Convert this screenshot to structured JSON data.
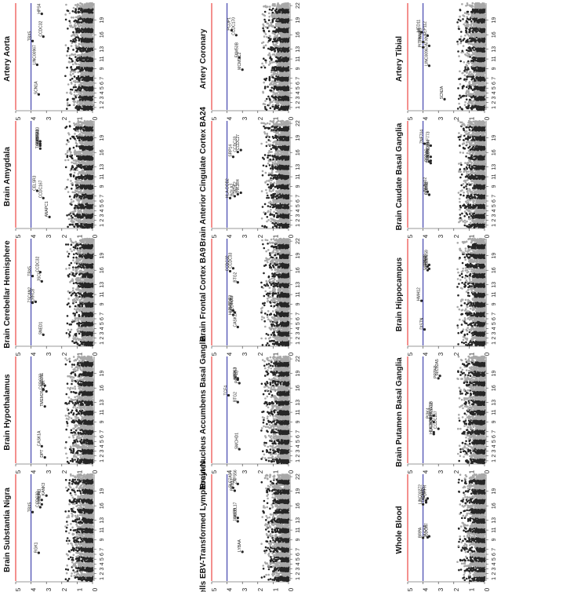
{
  "chart_data": [
    {
      "type": "scatter",
      "title": "Artery Aorta",
      "ylim": [
        0,
        5
      ],
      "thresholds": [
        4,
        5
      ],
      "genes": [
        [
          "SCN1A",
          3.2,
          3.5
        ],
        [
          "LINC00967",
          9.3,
          3.6
        ],
        [
          "TBX5",
          14.2,
          3.9
        ],
        [
          "CCDC32",
          15.1,
          3.2
        ],
        [
          "HPS4",
          19.8,
          3.3
        ]
      ]
    },
    {
      "type": "scatter",
      "title": "Artery Coronary",
      "ylim": [
        0,
        5
      ],
      "thresholds": [
        4,
        5
      ],
      "genes": [
        [
          "MCMDC2",
          8.3,
          3.0
        ],
        [
          "FAM53B",
          10.8,
          3.2
        ],
        [
          "CCDC170",
          15.4,
          3.4
        ],
        [
          "PCDP1",
          16.4,
          3.7
        ]
      ]
    },
    {
      "type": "scatter",
      "title": "Artery Tibial",
      "ylim": [
        0,
        5
      ],
      "thresholds": [
        4,
        5
      ],
      "genes": [
        [
          "SCN2A",
          2.2,
          2.6
        ],
        [
          "LINC00967",
          9.1,
          3.6
        ],
        [
          "ATXN2",
          13.2,
          3.6
        ],
        [
          "PITPNM2",
          12.9,
          4.0
        ],
        [
          "TRIM65",
          14.0,
          4.0
        ],
        [
          "MED11",
          16.0,
          4.1
        ],
        [
          "CEP112",
          15.3,
          3.7
        ]
      ]
    },
    {
      "type": "scatter",
      "title": "Brain Amygdala",
      "ylim": [
        0,
        5
      ],
      "thresholds": [
        4,
        5
      ],
      "genes": [
        [
          "ANAPC1",
          2.2,
          2.8
        ],
        [
          "CCDC167",
          6.1,
          3.2
        ],
        [
          "CELSR3",
          7.6,
          3.6
        ],
        [
          "TAOK2",
          16.3,
          3.4
        ],
        [
          "SULT1A1",
          16.9,
          3.4
        ],
        [
          "NPIPB1",
          17.3,
          3.4
        ],
        [
          "ZNF770",
          17.8,
          3.4
        ]
      ]
    },
    {
      "type": "scatter",
      "title": "Brain Anterior Cingulate Cortex BA24",
      "ylim": [
        0,
        5
      ],
      "thresholds": [
        4,
        5
      ],
      "genes": [
        [
          "HLA-DQB2",
          6.1,
          3.8
        ],
        [
          "BOLA2",
          6.5,
          3.5
        ],
        [
          "TAOK2",
          6.9,
          3.3
        ],
        [
          "PIK3R4",
          7.2,
          3.1
        ],
        [
          "SRP14",
          14.6,
          3.6
        ],
        [
          "CCDC27",
          16.0,
          3.1
        ],
        [
          "CCDC33",
          15.6,
          3.3
        ]
      ]
    },
    {
      "type": "scatter",
      "title": "Brain Caudate Basal Ganglia",
      "ylim": [
        0,
        5
      ],
      "thresholds": [
        4,
        5
      ],
      "genes": [
        [
          "CLDN2",
          6.8,
          3.6
        ],
        [
          "PHKG2",
          6.8,
          3.6
        ],
        [
          "KCNJ12",
          7.4,
          3.7
        ],
        [
          "PPP4C",
          13.6,
          3.6
        ],
        [
          "TRAPPC6B",
          13.3,
          3.5
        ],
        [
          "TAOK2",
          13.8,
          3.5
        ],
        [
          "KCTD13",
          14.6,
          3.5
        ],
        [
          "ZNF704",
          17.3,
          3.9
        ],
        [
          "ZNF773",
          16.9,
          3.5
        ]
      ]
    },
    {
      "type": "scatter",
      "title": "Brain Cerebellar Hemisphere",
      "ylim": [
        0,
        5
      ],
      "thresholds": [
        4,
        5
      ],
      "genes": [
        [
          "SNED1",
          2.2,
          3.2
        ],
        [
          "ZSCAN2",
          8.8,
          3.9
        ],
        [
          "LRRC8",
          9.0,
          3.7
        ],
        [
          "JSCU",
          13.2,
          3.3
        ],
        [
          "TBX5",
          14.3,
          3.9
        ],
        [
          "CCDC32",
          15.1,
          3.4
        ]
      ]
    },
    {
      "type": "scatter",
      "title": "Brain Frontal Cortex BA9",
      "ylim": [
        0,
        5
      ],
      "thresholds": [
        4,
        5
      ],
      "genes": [
        [
          "CASK1A",
          3.8,
          3.3
        ],
        [
          "HLA-DQB",
          6.3,
          3.6
        ],
        [
          "SLC44A4",
          6.8,
          3.5
        ],
        [
          "EMEI-F3",
          7.2,
          3.6
        ],
        [
          "BTG2",
          13.0,
          3.3
        ],
        [
          "CCDC32",
          15.3,
          3.8
        ],
        [
          "CCDC33",
          15.9,
          3.6
        ]
      ]
    },
    {
      "type": "scatter",
      "title": "Brain Hippocampus",
      "ylim": [
        0,
        5
      ],
      "thresholds": [
        4,
        5
      ],
      "genes": [
        [
          "DISTN",
          3.3,
          3.9
        ],
        [
          "HMH12",
          9.2,
          4.1
        ],
        [
          "CCDC22",
          15.5,
          3.7
        ],
        [
          "MYEOV",
          15.8,
          3.6
        ],
        [
          "CDR2",
          16.3,
          3.7
        ],
        [
          "LRRC59",
          16.6,
          3.6
        ]
      ]
    },
    {
      "type": "scatter",
      "title": "Brain Hypothalamus",
      "ylim": [
        0,
        5
      ],
      "thresholds": [
        4,
        5
      ],
      "genes": [
        [
          "DPT",
          1.2,
          3.1
        ],
        [
          "CASK1A",
          3.5,
          3.3
        ],
        [
          "TMEM26",
          11.7,
          3.1
        ],
        [
          "CCDC32",
          15.2,
          3.2
        ],
        [
          "CCNK",
          14.8,
          3.0
        ],
        [
          "MED11",
          16.0,
          3.1
        ]
      ]
    },
    {
      "type": "scatter",
      "title": "Brain Nucleus Accumbens Basal Ganglia",
      "ylim": [
        0,
        5
      ],
      "thresholds": [
        4,
        5
      ],
      "genes": [
        [
          "SMCHD1",
          2.9,
          3.2
        ],
        [
          "BTG2",
          12.6,
          3.3
        ],
        [
          "TCF4",
          14.0,
          3.9
        ],
        [
          "MRS3",
          17.5,
          3.3
        ],
        [
          "NPRL3",
          17.2,
          3.3
        ],
        [
          "PPP4C",
          16.5,
          3.2
        ]
      ]
    },
    {
      "type": "scatter",
      "title": "Brain Putamen Basal Ganglia",
      "ylim": [
        0,
        5
      ],
      "thresholds": [
        4,
        5
      ],
      "genes": [
        [
          "HLA-DQB2",
          6.0,
          3.3
        ],
        [
          "TAOK2",
          6.4,
          3.3
        ],
        [
          "CCDC167",
          7.1,
          3.0
        ],
        [
          "TMEM176B",
          8.5,
          3.3
        ],
        [
          "PI3K4",
          9.2,
          3.5
        ],
        [
          "HDAC2",
          9.8,
          3.3
        ],
        [
          "SLC12A5",
          18.0,
          2.9
        ],
        [
          "PRTN3",
          17.5,
          3.0
        ]
      ]
    },
    {
      "type": "scatter",
      "title": "Brain Substantia Nigra",
      "ylim": [
        0,
        5
      ],
      "thresholds": [
        4,
        5
      ],
      "genes": [
        [
          "RGK1",
          5.8,
          3.5
        ],
        [
          "TBX5",
          14.2,
          3.9
        ],
        [
          "CCDC32",
          15.2,
          3.4
        ],
        [
          "GREFY1",
          15.8,
          3.3
        ],
        [
          "HLA1",
          16.7,
          3.3
        ],
        [
          "KANK3",
          17.6,
          3.0
        ]
      ]
    },
    {
      "type": "scatter",
      "title": "Cells EBV-Transformed Lymphocytes",
      "ylim": [
        0,
        5
      ],
      "thresholds": [
        4,
        5
      ],
      "genes": [
        [
          "LYBAA",
          6.0,
          3.0
        ],
        [
          "JAILED",
          12.3,
          3.3
        ],
        [
          "WRPL17",
          13.0,
          3.3
        ],
        [
          "PKD12",
          18.6,
          3.5
        ],
        [
          "SLC7A5",
          19.2,
          3.6
        ],
        [
          "ZNF556",
          20.0,
          3.3
        ]
      ]
    },
    {
      "type": "scatter",
      "title": "Whole Blood",
      "ylim": [
        0,
        5
      ],
      "thresholds": [
        4,
        5
      ],
      "genes": [
        [
          "BRPA",
          8.9,
          4.0
        ],
        [
          "SLC6A",
          9.0,
          3.7
        ],
        [
          "CDCA7",
          9.2,
          3.6
        ],
        [
          "LINC00272",
          15.8,
          4.0
        ],
        [
          "TAOK2",
          16.2,
          3.8
        ],
        [
          "ATXN2L",
          16.6,
          3.8
        ],
        [
          "PDRFIT",
          17.0,
          3.7
        ]
      ]
    }
  ],
  "axis": {
    "yticks": [
      "5",
      "4",
      "3",
      "2",
      "1",
      "0"
    ],
    "chr_labels_a": [
      "1",
      "2",
      "3",
      "4",
      "5",
      "6",
      "7",
      "9",
      "11",
      "13",
      "16",
      "19"
    ],
    "chr_labels_b": [
      "1",
      "2",
      "3",
      "4",
      "5",
      "6",
      "7",
      "9",
      "11",
      "13",
      "16",
      "19",
      "22"
    ]
  },
  "colors": {
    "dark": "#262626",
    "light": "#a8a8a8",
    "red_line": "#e8201c",
    "blue_line": "#2326a0"
  }
}
